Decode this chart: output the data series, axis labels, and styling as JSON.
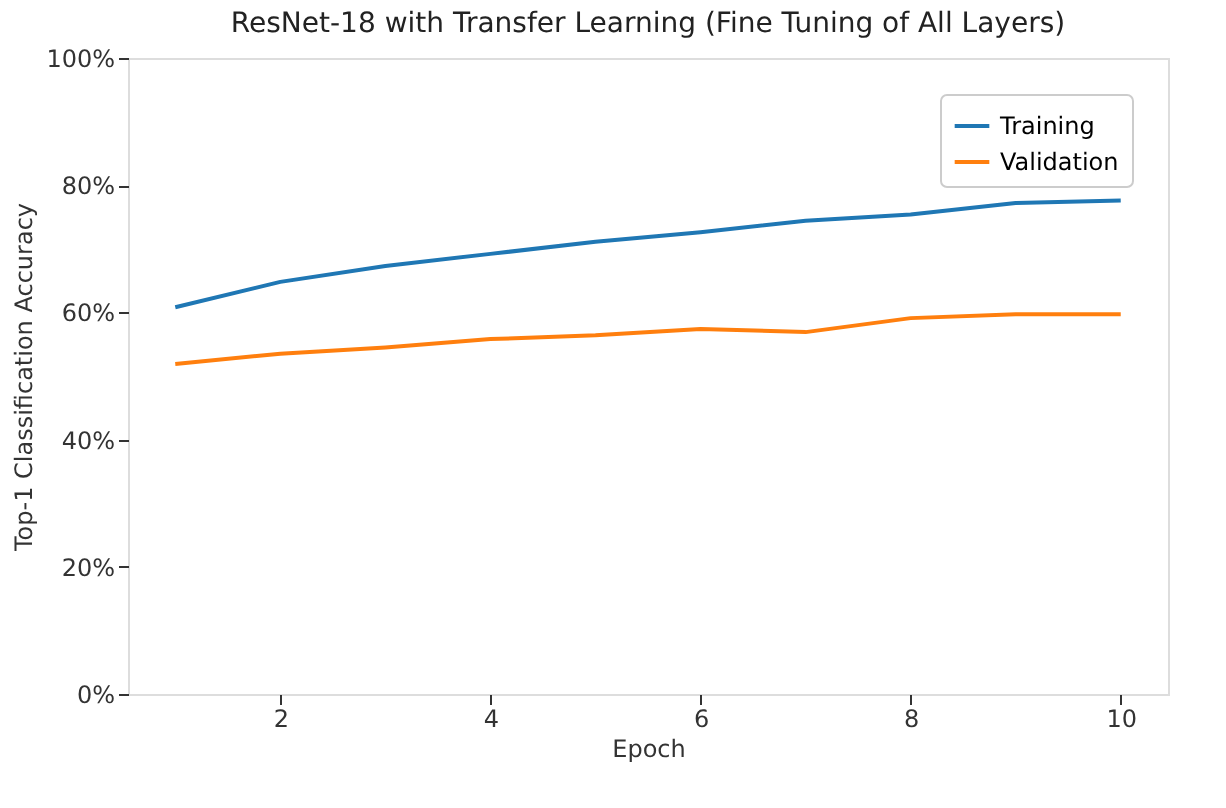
{
  "chart_data": {
    "type": "line",
    "title": "ResNet-18 with Transfer Learning (Fine Tuning of All Layers)",
    "xlabel": "Epoch",
    "ylabel": "Top-1 Classification Accuracy",
    "x": [
      1,
      2,
      3,
      4,
      5,
      6,
      7,
      8,
      9,
      10
    ],
    "series": [
      {
        "name": "Training",
        "color": "#1f77b4",
        "values": [
          60.8,
          64.8,
          67.3,
          69.2,
          71.1,
          72.6,
          74.4,
          75.4,
          77.2,
          77.6
        ]
      },
      {
        "name": "Validation",
        "color": "#ff7f0e",
        "values": [
          51.9,
          53.5,
          54.5,
          55.8,
          56.4,
          57.4,
          56.9,
          59.1,
          59.7,
          59.7
        ]
      }
    ],
    "xlim": [
      0.55,
      10.45
    ],
    "xticks": [
      2,
      4,
      6,
      8,
      10
    ],
    "ylim": [
      0,
      100
    ],
    "yticks": [
      {
        "value": 0,
        "label": "0%"
      },
      {
        "value": 20,
        "label": "20%"
      },
      {
        "value": 40,
        "label": "40%"
      },
      {
        "value": 60,
        "label": "60%"
      },
      {
        "value": 80,
        "label": "80%"
      },
      {
        "value": 100,
        "label": "100%"
      }
    ],
    "legend": "top right",
    "grid": false,
    "line_style": "solid",
    "marker": "none"
  }
}
